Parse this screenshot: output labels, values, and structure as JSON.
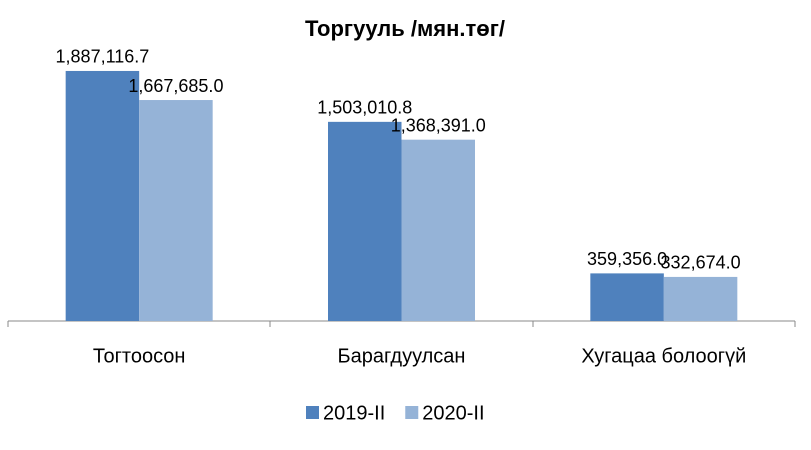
{
  "chart_data": {
    "type": "bar",
    "title": "Торгууль /мян.төг/",
    "categories": [
      "Тогтоосон",
      "Барагдуулсан",
      "Хугацаа болоогүй"
    ],
    "series": [
      {
        "name": "2019-II",
        "color": "#4f81bd",
        "values": [
          1887116.7,
          1503010.8,
          359356.0
        ],
        "value_labels": [
          "1,887,116.7",
          "1,503,010.8",
          "359,356.0"
        ]
      },
      {
        "name": "2020-II",
        "color": "#95b3d7",
        "values": [
          1667685.0,
          1368391.0,
          332674.0
        ],
        "value_labels": [
          "1,667,685.0",
          "1,368,391.0",
          "332,674.0"
        ]
      }
    ],
    "ylim": [
      0,
      2000000
    ],
    "legend": "bottom"
  }
}
